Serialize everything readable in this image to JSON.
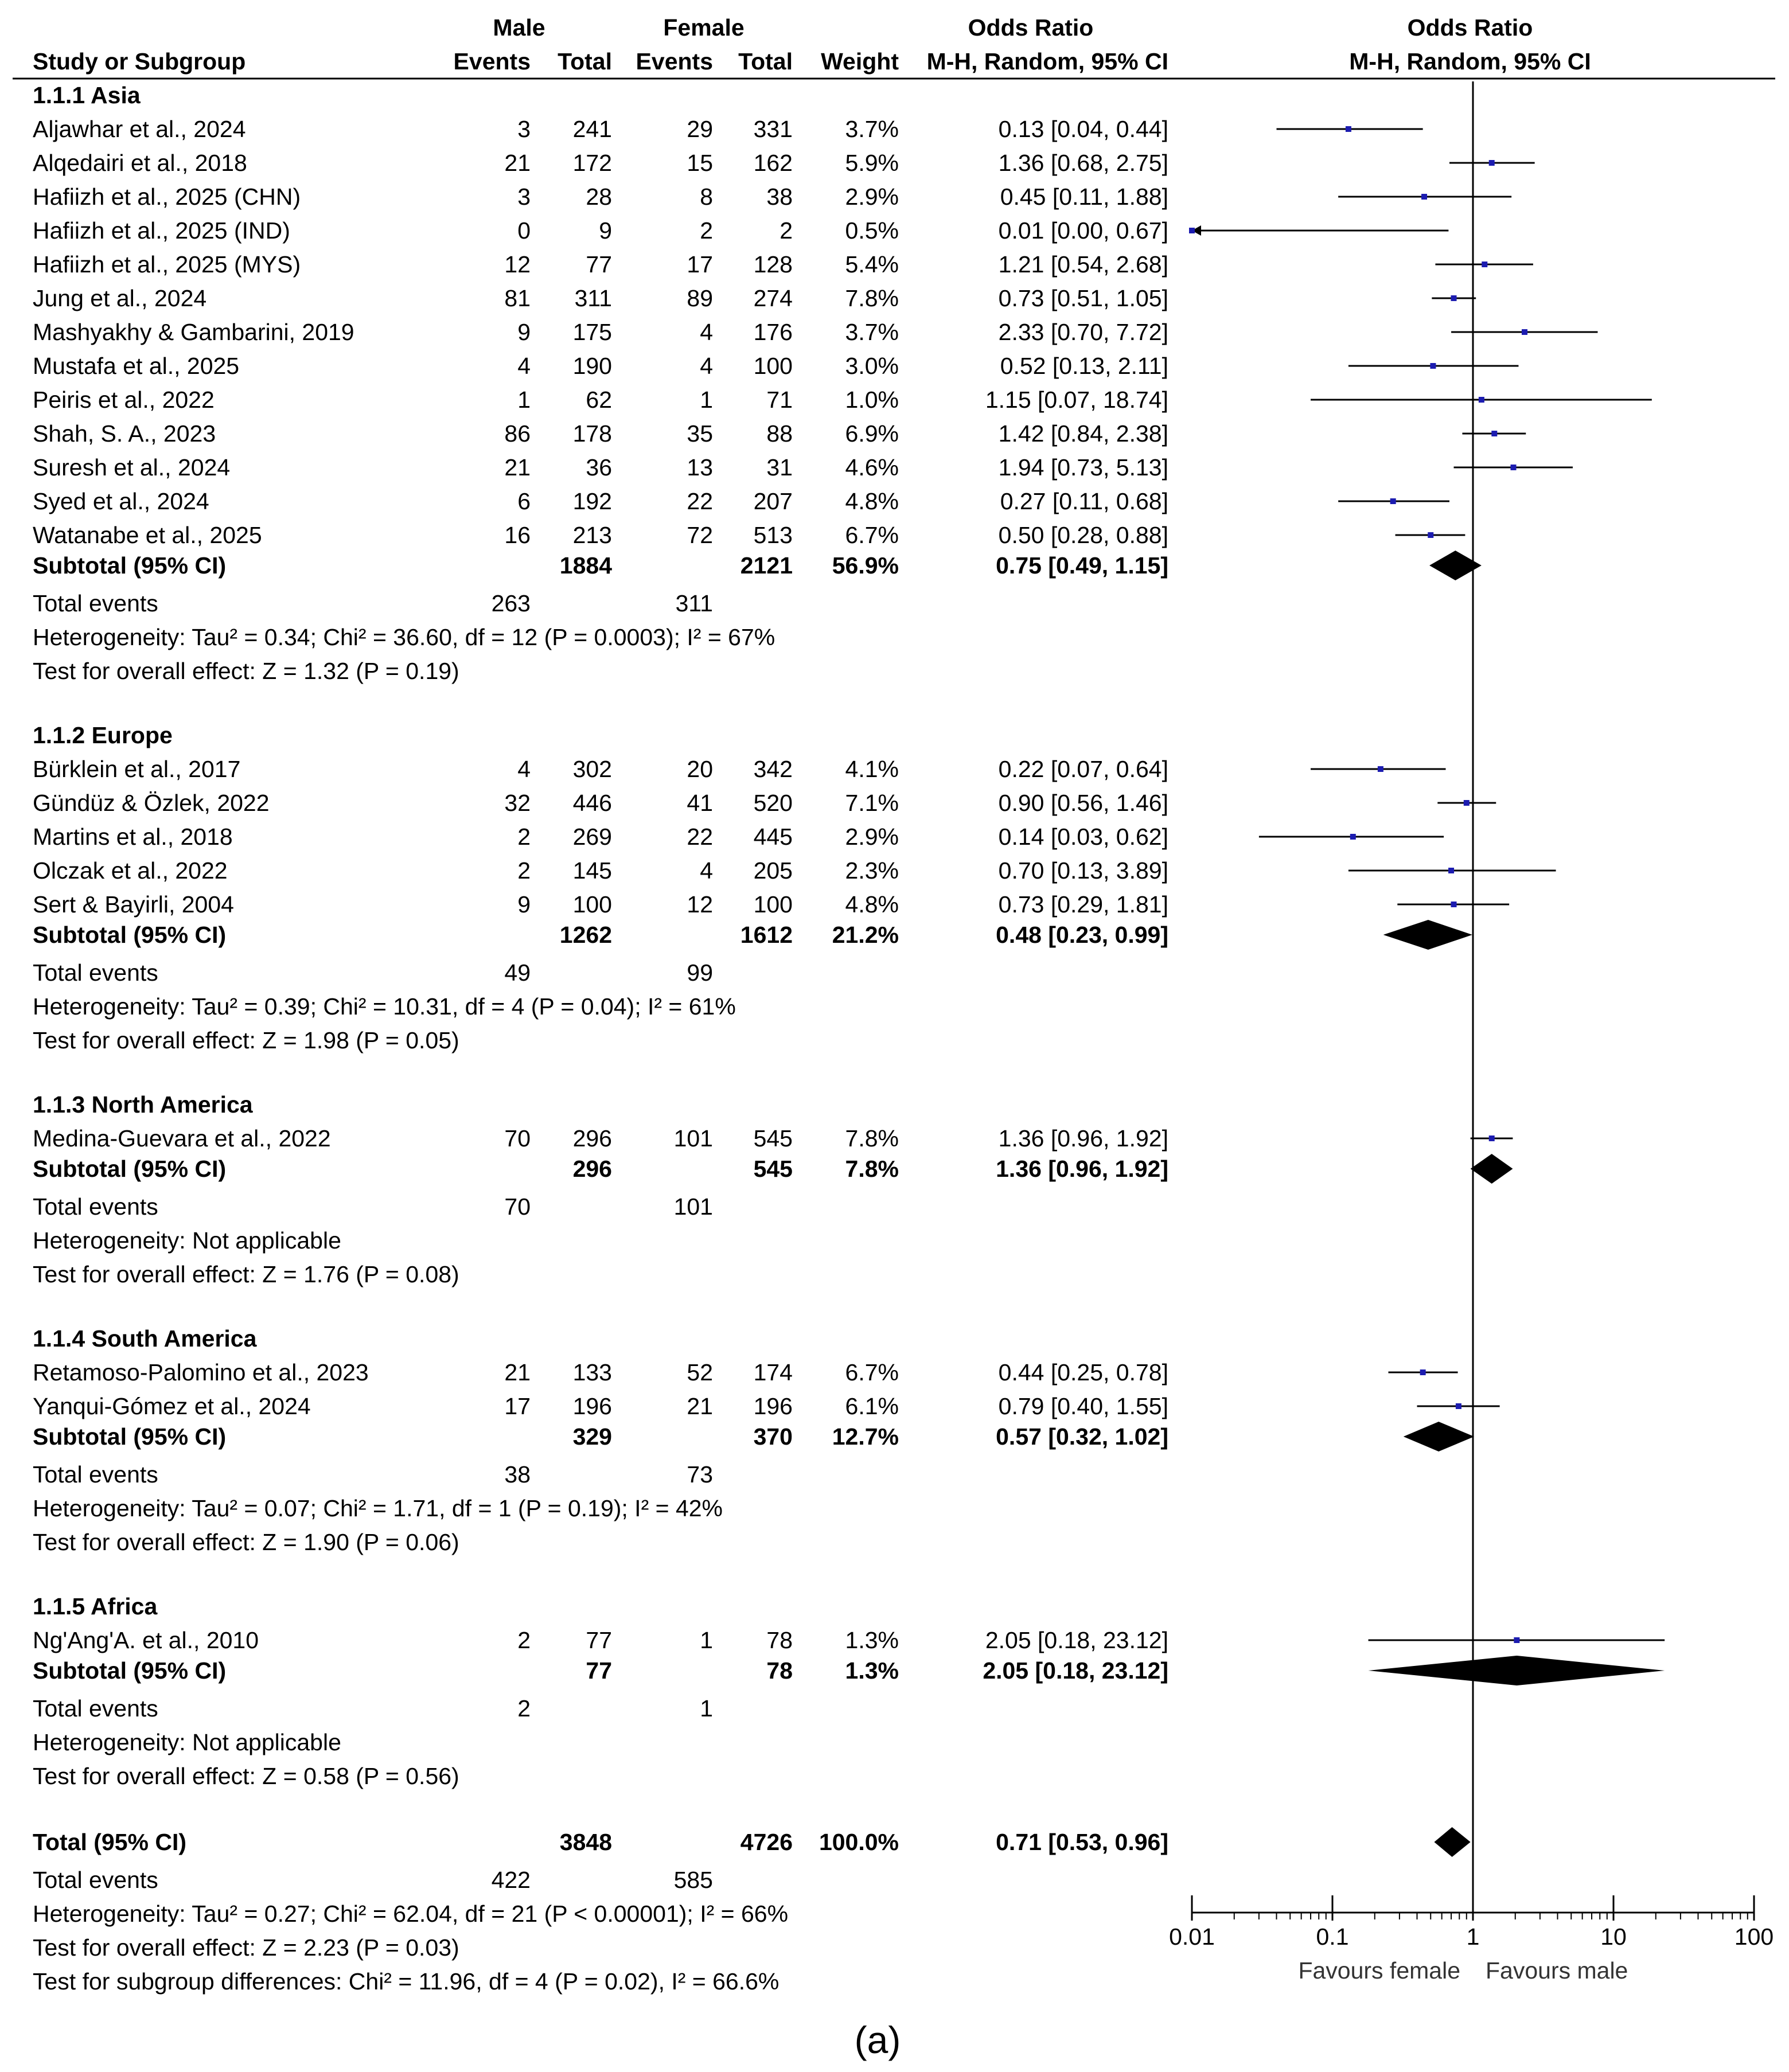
{
  "chart_data": {
    "type": "forest",
    "header": {
      "col_study": "Study or Subgroup",
      "group_male": "Male",
      "group_female": "Female",
      "col_events": "Events",
      "col_total": "Total",
      "col_weight": "Weight",
      "or_title": "Odds Ratio",
      "or_method": "M-H, Random, 95% CI",
      "plot_title": "Odds Ratio",
      "plot_method": "M-H, Random, 95% CI"
    },
    "axis": {
      "scale": "log",
      "min": 0.01,
      "max": 100,
      "ticks": [
        {
          "value": 0.01,
          "label": "0.01"
        },
        {
          "value": 0.1,
          "label": "0.1"
        },
        {
          "value": 1,
          "label": "1"
        },
        {
          "value": 10,
          "label": "10"
        },
        {
          "value": 100,
          "label": "100"
        }
      ],
      "label_left": "Favours female",
      "label_right": "Favours male"
    },
    "subgroups": [
      {
        "name": "1.1.1 Asia",
        "studies": [
          {
            "study": "Aljawhar et al., 2024",
            "me": "3",
            "mt": "241",
            "fe": "29",
            "ft": "331",
            "w": "3.7%",
            "ci": "0.13 [0.04, 0.44]",
            "or": 0.13,
            "lo": 0.04,
            "hi": 0.44
          },
          {
            "study": "Alqedairi et al., 2018",
            "me": "21",
            "mt": "172",
            "fe": "15",
            "ft": "162",
            "w": "5.9%",
            "ci": "1.36 [0.68, 2.75]",
            "or": 1.36,
            "lo": 0.68,
            "hi": 2.75
          },
          {
            "study": "Hafiizh et al., 2025 (CHN)",
            "me": "3",
            "mt": "28",
            "fe": "8",
            "ft": "38",
            "w": "2.9%",
            "ci": "0.45 [0.11, 1.88]",
            "or": 0.45,
            "lo": 0.11,
            "hi": 1.88
          },
          {
            "study": "Hafiizh et al., 2025 (IND)",
            "me": "0",
            "mt": "9",
            "fe": "2",
            "ft": "2",
            "w": "0.5%",
            "ci": "0.01 [0.00, 0.67]",
            "or": 0.01,
            "lo": 0.0,
            "hi": 0.67
          },
          {
            "study": "Hafiizh et al., 2025 (MYS)",
            "me": "12",
            "mt": "77",
            "fe": "17",
            "ft": "128",
            "w": "5.4%",
            "ci": "1.21 [0.54, 2.68]",
            "or": 1.21,
            "lo": 0.54,
            "hi": 2.68
          },
          {
            "study": "Jung et al.,  2024",
            "me": "81",
            "mt": "311",
            "fe": "89",
            "ft": "274",
            "w": "7.8%",
            "ci": "0.73 [0.51, 1.05]",
            "or": 0.73,
            "lo": 0.51,
            "hi": 1.05
          },
          {
            "study": "Mashyakhy & Gambarini, 2019",
            "me": "9",
            "mt": "175",
            "fe": "4",
            "ft": "176",
            "w": "3.7%",
            "ci": "2.33 [0.70, 7.72]",
            "or": 2.33,
            "lo": 0.7,
            "hi": 7.72
          },
          {
            "study": "Mustafa et al.,  2025",
            "me": "4",
            "mt": "190",
            "fe": "4",
            "ft": "100",
            "w": "3.0%",
            "ci": "0.52 [0.13, 2.11]",
            "or": 0.52,
            "lo": 0.13,
            "hi": 2.11
          },
          {
            "study": "Peiris et al., 2022",
            "me": "1",
            "mt": "62",
            "fe": "1",
            "ft": "71",
            "w": "1.0%",
            "ci": "1.15 [0.07, 18.74]",
            "or": 1.15,
            "lo": 0.07,
            "hi": 18.74
          },
          {
            "study": "Shah, S. A., 2023",
            "me": "86",
            "mt": "178",
            "fe": "35",
            "ft": "88",
            "w": "6.9%",
            "ci": "1.42 [0.84, 2.38]",
            "or": 1.42,
            "lo": 0.84,
            "hi": 2.38
          },
          {
            "study": "Suresh et al.,  2024",
            "me": "21",
            "mt": "36",
            "fe": "13",
            "ft": "31",
            "w": "4.6%",
            "ci": "1.94 [0.73, 5.13]",
            "or": 1.94,
            "lo": 0.73,
            "hi": 5.13
          },
          {
            "study": "Syed et al., 2024",
            "me": "6",
            "mt": "192",
            "fe": "22",
            "ft": "207",
            "w": "4.8%",
            "ci": "0.27 [0.11, 0.68]",
            "or": 0.27,
            "lo": 0.11,
            "hi": 0.68
          },
          {
            "study": "Watanabe et al., 2025",
            "me": "16",
            "mt": "213",
            "fe": "72",
            "ft": "513",
            "w": "6.7%",
            "ci": "0.50 [0.28, 0.88]",
            "or": 0.5,
            "lo": 0.28,
            "hi": 0.88
          }
        ],
        "subtotal": {
          "label": "Subtotal (95% CI)",
          "mt": "1884",
          "ft": "2121",
          "w": "56.9%",
          "ci": "0.75 [0.49, 1.15]",
          "or": 0.75,
          "lo": 0.49,
          "hi": 1.15
        },
        "total_events": {
          "label": "Total events",
          "male": "263",
          "female": "311"
        },
        "heterogeneity": "Heterogeneity: Tau² = 0.34; Chi² = 36.60, df = 12 (P = 0.0003); I² = 67%",
        "overall_effect": "Test for overall effect: Z = 1.32 (P = 0.19)"
      },
      {
        "name": "1.1.2 Europe",
        "studies": [
          {
            "study": "Bürklein et al., 2017",
            "me": "4",
            "mt": "302",
            "fe": "20",
            "ft": "342",
            "w": "4.1%",
            "ci": "0.22 [0.07, 0.64]",
            "or": 0.22,
            "lo": 0.07,
            "hi": 0.64
          },
          {
            "study": "Gündüz & Özlek, 2022",
            "me": "32",
            "mt": "446",
            "fe": "41",
            "ft": "520",
            "w": "7.1%",
            "ci": "0.90 [0.56, 1.46]",
            "or": 0.9,
            "lo": 0.56,
            "hi": 1.46
          },
          {
            "study": "Martins et al., 2018",
            "me": "2",
            "mt": "269",
            "fe": "22",
            "ft": "445",
            "w": "2.9%",
            "ci": "0.14 [0.03, 0.62]",
            "or": 0.14,
            "lo": 0.03,
            "hi": 0.62
          },
          {
            "study": "Olczak et al., 2022",
            "me": "2",
            "mt": "145",
            "fe": "4",
            "ft": "205",
            "w": "2.3%",
            "ci": "0.70 [0.13, 3.89]",
            "or": 0.7,
            "lo": 0.13,
            "hi": 3.89
          },
          {
            "study": "Sert & Bayirli, 2004",
            "me": "9",
            "mt": "100",
            "fe": "12",
            "ft": "100",
            "w": "4.8%",
            "ci": "0.73 [0.29, 1.81]",
            "or": 0.73,
            "lo": 0.29,
            "hi": 1.81
          }
        ],
        "subtotal": {
          "label": "Subtotal (95% CI)",
          "mt": "1262",
          "ft": "1612",
          "w": "21.2%",
          "ci": "0.48 [0.23, 0.99]",
          "or": 0.48,
          "lo": 0.23,
          "hi": 0.99
        },
        "total_events": {
          "label": "Total events",
          "male": "49",
          "female": "99"
        },
        "heterogeneity": "Heterogeneity: Tau² = 0.39; Chi² = 10.31, df = 4 (P = 0.04); I² = 61%",
        "overall_effect": "Test for overall effect: Z = 1.98 (P = 0.05)"
      },
      {
        "name": "1.1.3 North America",
        "studies": [
          {
            "study": "Medina-Guevara et al., 2022",
            "me": "70",
            "mt": "296",
            "fe": "101",
            "ft": "545",
            "w": "7.8%",
            "ci": "1.36 [0.96, 1.92]",
            "or": 1.36,
            "lo": 0.96,
            "hi": 1.92
          }
        ],
        "subtotal": {
          "label": "Subtotal (95% CI)",
          "mt": "296",
          "ft": "545",
          "w": "7.8%",
          "ci": "1.36 [0.96, 1.92]",
          "or": 1.36,
          "lo": 0.96,
          "hi": 1.92
        },
        "total_events": {
          "label": "Total events",
          "male": "70",
          "female": "101"
        },
        "heterogeneity": "Heterogeneity: Not applicable",
        "overall_effect": "Test for overall effect: Z = 1.76 (P = 0.08)"
      },
      {
        "name": "1.1.4 South America",
        "studies": [
          {
            "study": "Retamoso-Palomino et al., 2023",
            "me": "21",
            "mt": "133",
            "fe": "52",
            "ft": "174",
            "w": "6.7%",
            "ci": "0.44 [0.25, 0.78]",
            "or": 0.44,
            "lo": 0.25,
            "hi": 0.78
          },
          {
            "study": "Yanqui-Gómez et al., 2024",
            "me": "17",
            "mt": "196",
            "fe": "21",
            "ft": "196",
            "w": "6.1%",
            "ci": "0.79 [0.40, 1.55]",
            "or": 0.79,
            "lo": 0.4,
            "hi": 1.55
          }
        ],
        "subtotal": {
          "label": "Subtotal (95% CI)",
          "mt": "329",
          "ft": "370",
          "w": "12.7%",
          "ci": "0.57 [0.32, 1.02]",
          "or": 0.57,
          "lo": 0.32,
          "hi": 1.02
        },
        "total_events": {
          "label": "Total events",
          "male": "38",
          "female": "73"
        },
        "heterogeneity": "Heterogeneity: Tau² = 0.07; Chi² = 1.71, df = 1 (P = 0.19); I² = 42%",
        "overall_effect": "Test for overall effect: Z = 1.90 (P = 0.06)"
      },
      {
        "name": "1.1.5 Africa",
        "studies": [
          {
            "study": "Ng'Ang'A. et al., 2010",
            "me": "2",
            "mt": "77",
            "fe": "1",
            "ft": "78",
            "w": "1.3%",
            "ci": "2.05 [0.18, 23.12]",
            "or": 2.05,
            "lo": 0.18,
            "hi": 23.12
          }
        ],
        "subtotal": {
          "label": "Subtotal (95% CI)",
          "mt": "77",
          "ft": "78",
          "w": "1.3%",
          "ci": "2.05 [0.18, 23.12]",
          "or": 2.05,
          "lo": 0.18,
          "hi": 23.12
        },
        "total_events": {
          "label": "Total events",
          "male": "2",
          "female": "1"
        },
        "heterogeneity": "Heterogeneity: Not applicable",
        "overall_effect": "Test for overall effect: Z = 0.58 (P = 0.56)"
      }
    ],
    "total": {
      "label": "Total (95% CI)",
      "mt": "3848",
      "ft": "4726",
      "w": "100.0%",
      "ci": "0.71 [0.53, 0.96]",
      "or": 0.71,
      "lo": 0.53,
      "hi": 0.96,
      "total_events": {
        "label": "Total events",
        "male": "422",
        "female": "585"
      },
      "heterogeneity": "Heterogeneity: Tau² = 0.27; Chi² = 62.04, df = 21 (P < 0.00001); I² = 66%",
      "overall_effect": "Test for overall effect: Z = 2.23 (P = 0.03)",
      "subgroup_diff": "Test for subgroup differences: Chi² = 11.96, df = 4 (P = 0.02), I² = 66.6%"
    },
    "caption": "(a)",
    "colors": {
      "point": "#1c1cb0",
      "line": "#000000"
    }
  }
}
